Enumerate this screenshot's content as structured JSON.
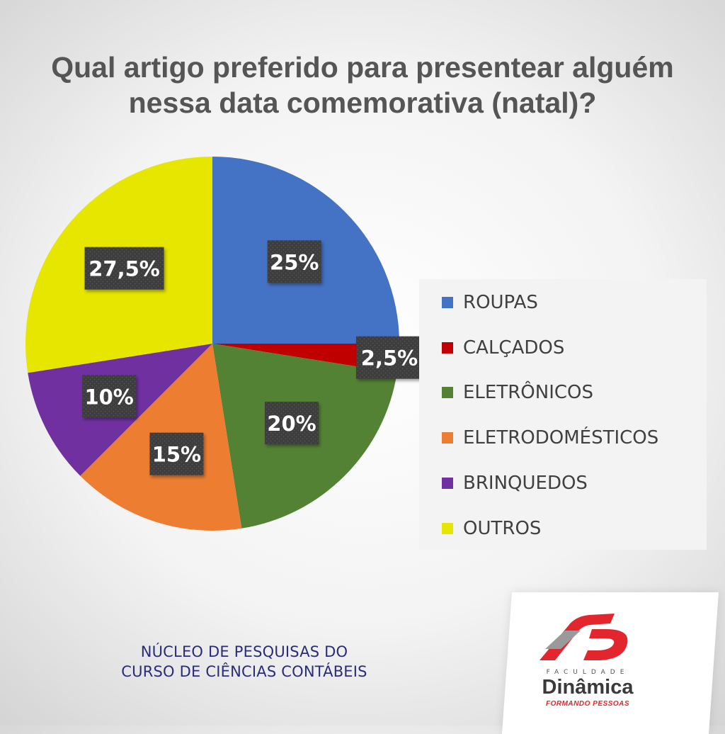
{
  "chart_data": {
    "type": "pie",
    "title_lines": [
      "Qual artigo preferido para presentear alguém",
      "nessa data comemorativa (natal)?"
    ],
    "slices": [
      {
        "name": "ROUPAS",
        "value": 25,
        "label": "25%",
        "color": "#4472c4"
      },
      {
        "name": "CALÇADOS",
        "value": 2.5,
        "label": "2,5%",
        "color": "#c00000"
      },
      {
        "name": "ELETRÔNICOS",
        "value": 20,
        "label": "20%",
        "color": "#548235"
      },
      {
        "name": "ELETRODOMÉSTICOS",
        "value": 15,
        "label": "15%",
        "color": "#ed7d31"
      },
      {
        "name": "BRINQUEDOS",
        "value": 10,
        "label": "10%",
        "color": "#7030a0"
      },
      {
        "name": "OUTROS",
        "value": 27.5,
        "label": "27,5%",
        "color": "#e6e600"
      }
    ],
    "start_angle_deg": 0,
    "direction": "clockwise",
    "legend_position": "right"
  },
  "footer": {
    "lines": [
      "NÚCLEO DE PESQUISAS DO",
      "CURSO DE CIÊNCIAS CONTÁBEIS"
    ]
  },
  "logo": {
    "subtitle": "FACULDADE",
    "name": "Dinâmica",
    "tagline": "FORMANDO PESSOAS",
    "colors": {
      "red": "#e3262e",
      "gray": "#8c8c8c"
    }
  }
}
